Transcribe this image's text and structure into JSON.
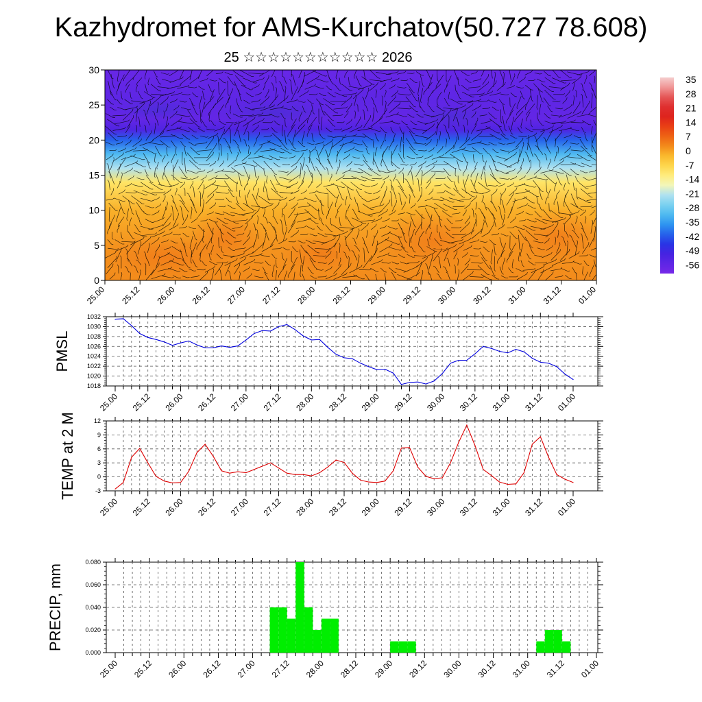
{
  "title": "Kazhydromet for AMS-Kurchatov(50.727 78.608)",
  "subtitle": "25 ☆☆☆☆☆☆☆☆☆☆☆ 2026",
  "time_labels": [
    "25.00",
    "25.12",
    "26.00",
    "26.12",
    "27.00",
    "27.12",
    "28.00",
    "28.12",
    "29.00",
    "29.12",
    "30.00",
    "30.12",
    "31.00",
    "31.12",
    "01.00"
  ],
  "colors": {
    "pmsl_line": "#0000dd",
    "temp_line": "#dd0000",
    "precip_bar": "#00ee00",
    "grid": "#555555",
    "vector": "#000000"
  },
  "chart_data": [
    {
      "type": "heatmap",
      "name": "temperature-wind cross-section",
      "x_range": [
        "25.00",
        "01.00"
      ],
      "ylim": [
        0,
        30
      ],
      "y_ticks": [
        0,
        5,
        10,
        15,
        20,
        25,
        30
      ],
      "overlay": "wind vectors",
      "colorbar": {
        "labels": [
          "35",
          "28",
          "21",
          "14",
          "7",
          "0",
          "-7",
          "-14",
          "-21",
          "-28",
          "-35",
          "-42",
          "-49",
          "-56"
        ],
        "range": [
          -60,
          40
        ]
      },
      "level_profile": [
        {
          "level": 0,
          "value": 5
        },
        {
          "level": 5,
          "value": 4
        },
        {
          "level": 10,
          "value": 1
        },
        {
          "level": 14,
          "value": -8
        },
        {
          "level": 16,
          "value": -20
        },
        {
          "level": 18,
          "value": -30
        },
        {
          "level": 20,
          "value": -40
        },
        {
          "level": 21.5,
          "value": -52
        },
        {
          "level": 23,
          "value": -56
        },
        {
          "level": 26,
          "value": -55
        },
        {
          "level": 30,
          "value": -57
        }
      ]
    },
    {
      "type": "line",
      "name": "PMSL",
      "ylabel": "PMSL",
      "ylim": [
        1018,
        1032
      ],
      "y_ticks": [
        "1018",
        "1020",
        "1022",
        "1024",
        "1026",
        "1028",
        "1030",
        "1032"
      ],
      "x_hours_step": 3,
      "values": [
        1031.5,
        1031.6,
        1030.2,
        1028.6,
        1027.8,
        1027.4,
        1026.9,
        1026.2,
        1026.7,
        1027.1,
        1026.3,
        1025.7,
        1025.7,
        1026.1,
        1025.8,
        1026.1,
        1027.3,
        1028.6,
        1029.2,
        1029.1,
        1030.0,
        1030.4,
        1029.4,
        1028.1,
        1027.3,
        1027.4,
        1025.8,
        1024.4,
        1023.7,
        1023.5,
        1022.6,
        1021.9,
        1021.3,
        1021.4,
        1020.6,
        1018.3,
        1018.7,
        1018.8,
        1018.4,
        1019.0,
        1020.5,
        1022.6,
        1023.2,
        1023.2,
        1024.5,
        1026.0,
        1025.6,
        1025.0,
        1024.7,
        1025.4,
        1024.9,
        1023.6,
        1022.8,
        1022.6,
        1021.9,
        1020.4,
        1019.3
      ]
    },
    {
      "type": "line",
      "name": "TEMP at 2 M",
      "ylabel": "TEMP at 2 M",
      "ylim": [
        -3,
        12
      ],
      "y_ticks": [
        "-3",
        "0",
        "3",
        "6",
        "9",
        "12"
      ],
      "x_hours_step": 3,
      "values": [
        -2.6,
        -1.2,
        4.2,
        6.1,
        3.0,
        0.1,
        -0.9,
        -1.3,
        -1.2,
        1.2,
        5.2,
        7.0,
        4.4,
        1.3,
        0.8,
        1.1,
        0.9,
        1.6,
        2.3,
        3.0,
        1.9,
        0.8,
        0.5,
        0.5,
        0.2,
        0.9,
        2.1,
        3.6,
        3.1,
        0.8,
        -0.7,
        -1.1,
        -1.2,
        -0.9,
        1.3,
        6.2,
        6.3,
        2.1,
        0.1,
        -0.4,
        -0.2,
        3.0,
        7.4,
        11.1,
        6.7,
        1.6,
        0.3,
        -1.1,
        -1.6,
        -1.5,
        0.9,
        7.0,
        8.6,
        4.2,
        0.5,
        -0.5,
        -1.2
      ]
    },
    {
      "type": "bar",
      "name": "PRECIP, mm",
      "ylabel": "PRECIP, mm",
      "ylim": [
        0,
        0.08
      ],
      "y_ticks": [
        "0.000",
        "0.020",
        "0.040",
        "0.060",
        "0.080"
      ],
      "x_hours_step": 3,
      "values": [
        0,
        0,
        0,
        0,
        0,
        0,
        0,
        0,
        0,
        0,
        0,
        0,
        0,
        0,
        0,
        0,
        0,
        0,
        0.04,
        0.04,
        0.03,
        0.08,
        0.04,
        0.02,
        0.03,
        0.03,
        0,
        0,
        0,
        0,
        0,
        0,
        0.01,
        0.01,
        0.01,
        0,
        0,
        0,
        0,
        0,
        0,
        0,
        0,
        0,
        0,
        0,
        0,
        0,
        0,
        0.01,
        0.02,
        0.02,
        0.01,
        0,
        0,
        0,
        0
      ]
    }
  ]
}
